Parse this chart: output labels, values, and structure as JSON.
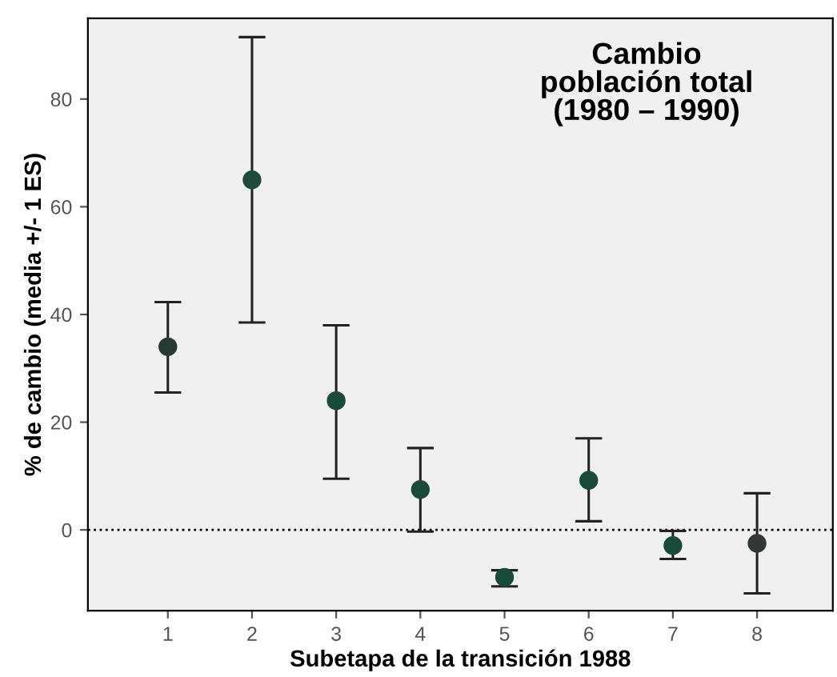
{
  "chart_data": {
    "type": "scatter",
    "title": "Cambio\npoblación total\n(1980 – 1990)",
    "xlabel": "Subetapa de la transición 1988",
    "ylabel": "% de cambio (media +/- 1 ES)",
    "categories": [
      "1",
      "2",
      "3",
      "4",
      "5",
      "6",
      "7",
      "8"
    ],
    "values": [
      34,
      65,
      24,
      7.5,
      -8.8,
      9.2,
      -2.9,
      -2.5
    ],
    "errors": [
      [
        25.5,
        42.3
      ],
      [
        38.5,
        91.5
      ],
      [
        9.5,
        38
      ],
      [
        -0.3,
        15.2
      ],
      [
        -10.5,
        -7.5
      ],
      [
        1.6,
        17
      ],
      [
        -5.4,
        -0.2
      ],
      [
        -11.8,
        6.8
      ]
    ],
    "colors": [
      "#263a33",
      "#1f4a3c",
      "#1a4a3a",
      "#1a4a3a",
      "#1a4a3a",
      "#1a4a3a",
      "#1a4a3a",
      "#333836"
    ],
    "ylim": [
      -15,
      95
    ],
    "yticks": [
      0,
      20,
      40,
      60,
      80
    ],
    "ref_lines": [
      {
        "axis": "y",
        "value": 0,
        "line_style": "dotted",
        "color": "#000000"
      }
    ],
    "marker": "circle",
    "grid": false,
    "legend": false
  }
}
